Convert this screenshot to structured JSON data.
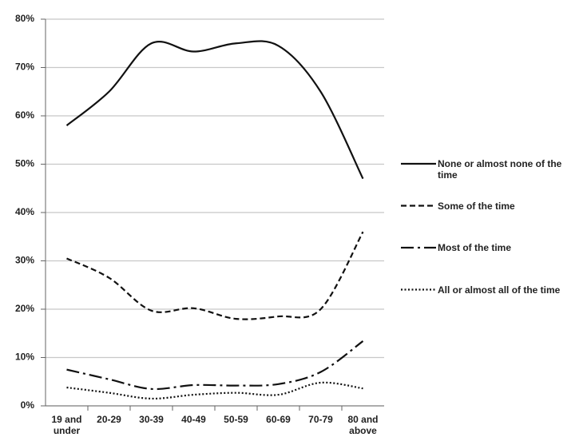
{
  "chart_data": {
    "type": "line",
    "categories": [
      "19 and under",
      "20-29",
      "30-39",
      "40-49",
      "50-59",
      "60-69",
      "70-79",
      "80 and above"
    ],
    "series": [
      {
        "name": "None or almost none of the time",
        "color": "#111111",
        "dash": "solid",
        "values": [
          58,
          65,
          75,
          73.3,
          75,
          74.5,
          65,
          47
        ]
      },
      {
        "name": "Some of the time",
        "color": "#111111",
        "dash": "dashed",
        "values": [
          30.5,
          26.5,
          19.7,
          20.2,
          18,
          18.5,
          20,
          36
        ]
      },
      {
        "name": "Most of the time",
        "color": "#111111",
        "dash": "dashdot",
        "values": [
          7.5,
          5.5,
          3.5,
          4.3,
          4.2,
          4.5,
          7,
          13.4
        ]
      },
      {
        "name": "All or almost all of the time",
        "color": "#111111",
        "dash": "dotted",
        "values": [
          3.8,
          2.7,
          1.5,
          2.3,
          2.7,
          2.3,
          4.8,
          3.6
        ]
      }
    ],
    "ylim": [
      0,
      80
    ],
    "yticks": [
      {
        "value": 0,
        "label": "0%"
      },
      {
        "value": 10,
        "label": "10%"
      },
      {
        "value": 20,
        "label": "20%"
      },
      {
        "value": 30,
        "label": "30%"
      },
      {
        "value": 40,
        "label": "40%"
      },
      {
        "value": 50,
        "label": "50%"
      },
      {
        "value": 60,
        "label": "60%"
      },
      {
        "value": 70,
        "label": "70%"
      },
      {
        "value": 80,
        "label": "80%"
      }
    ],
    "grid": true,
    "legend": "right"
  }
}
